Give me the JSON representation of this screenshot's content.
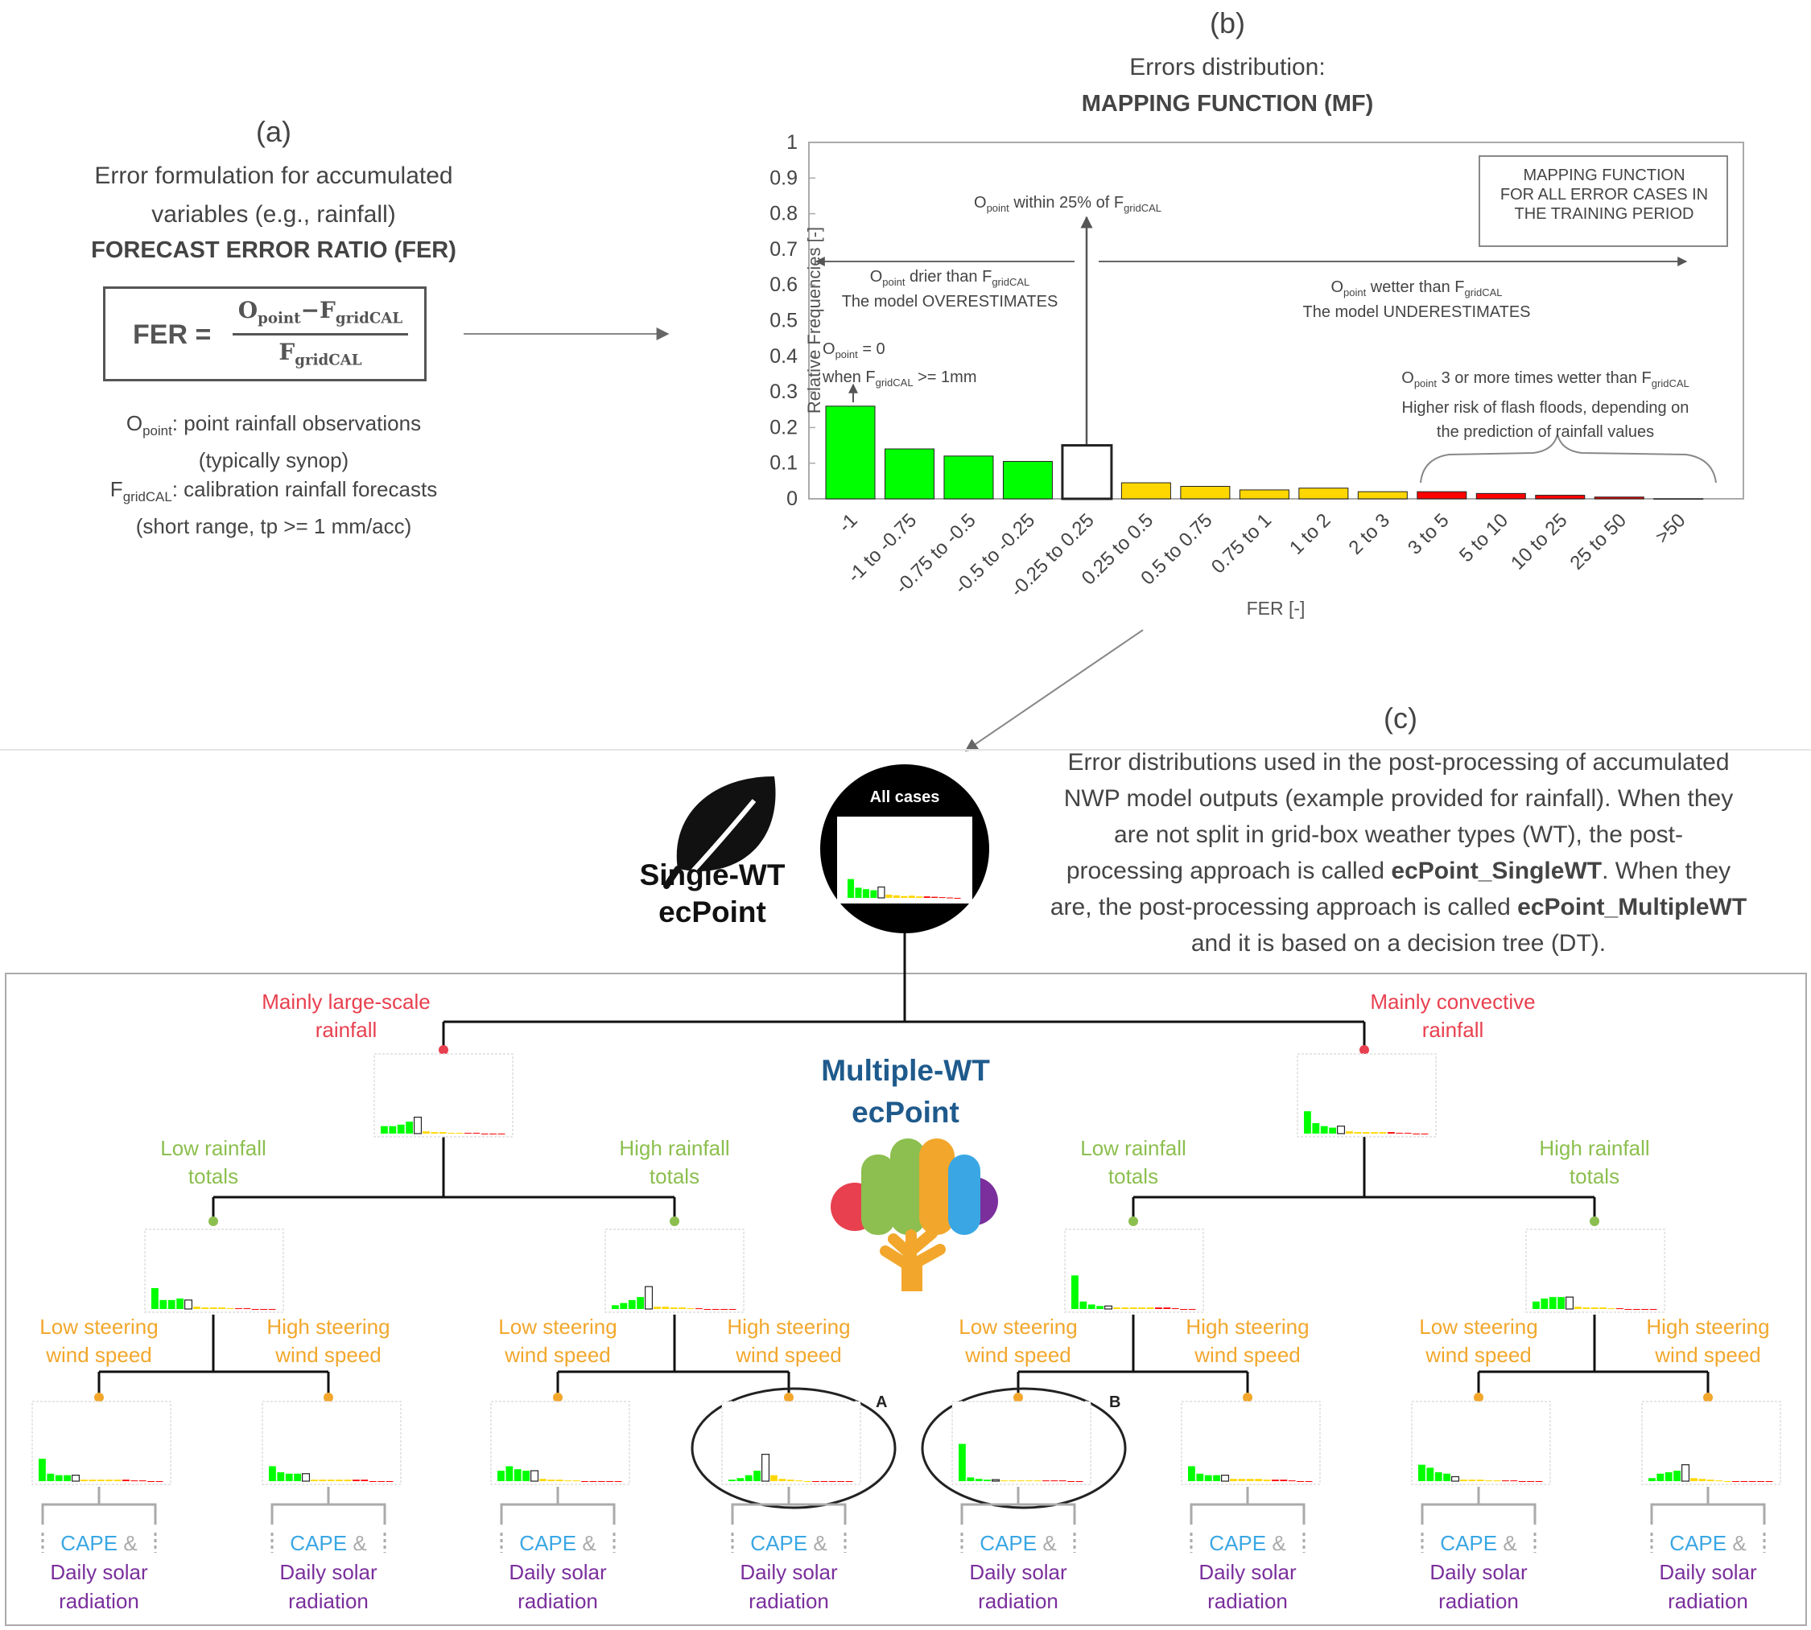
{
  "panel_a": {
    "label": "(a)",
    "line1": "Error formulation for accumulated",
    "line2": "variables (e.g., rainfall)",
    "title": "FORECAST ERROR RATIO (FER)",
    "formula_lhs": "FER =",
    "formula_num_a": "O",
    "formula_num_a_sub": "point",
    "formula_num_minus": "−F",
    "formula_num_b_sub": "gridCAL",
    "formula_den": "F",
    "formula_den_sub": "gridCAL",
    "o_sym": "O",
    "o_sub": "point",
    "o_desc": ": point rainfall observations",
    "o_desc2": "(typically synop)",
    "f_sym": "F",
    "f_sub": "gridCAL",
    "f_desc": ": calibration rainfall forecasts",
    "f_desc2": "(short range, tp >= 1 mm/acc)"
  },
  "panel_b": {
    "label": "(b)",
    "line1": "Errors distribution:",
    "title": "MAPPING FUNCTION (MF)",
    "legend_box": [
      "MAPPING FUNCTION",
      "FOR ALL ERROR CASES IN",
      "THE TRAINING PERIOD"
    ],
    "ann_within_a": "O",
    "ann_within_sub": "point",
    "ann_within_b": " within 25% of F",
    "ann_within_sub2": "gridCAL",
    "ann_drier_a": "O",
    "ann_drier_sub": "point",
    "ann_drier_b": " drier than F",
    "ann_drier_sub2": "gridCAL",
    "ann_drier_line2": "The model OVERESTIMATES",
    "ann_wetter_a": "O",
    "ann_wetter_sub": "point",
    "ann_wetter_b": " wetter than F",
    "ann_wetter_sub2": "gridCAL",
    "ann_wetter_line2": "The model UNDERESTIMATES",
    "ann_zero_a": "O",
    "ann_zero_sub": "point",
    "ann_zero_b": " = 0",
    "ann_zero_line2a": "when F",
    "ann_zero_line2sub": "gridCAL",
    "ann_zero_line2b": " >= 1mm",
    "ann_3x_a": "O",
    "ann_3x_sub": "point",
    "ann_3x_b": " 3 or more times wetter than F",
    "ann_3x_sub2": "gridCAL",
    "ann_3x_line2": "Higher risk of flash floods, depending on",
    "ann_3x_line3": "the prediction of rainfall values"
  },
  "chart_data": {
    "type": "bar",
    "categories": [
      "-1",
      "-1 to -0.75",
      "-0.75 to -0.5",
      "-0.5 to -0.25",
      "-0.25 to 0.25",
      "0.25 to 0.5",
      "0.5 to 0.75",
      "0.75 to 1",
      "1 to 2",
      "2 to 3",
      "3 to 5",
      "5 to 10",
      "10 to 25",
      "25 to 50",
      ">50"
    ],
    "values": [
      0.26,
      0.14,
      0.12,
      0.105,
      0.15,
      0.045,
      0.035,
      0.025,
      0.03,
      0.02,
      0.02,
      0.015,
      0.01,
      0.005,
      0.0
    ],
    "colors": [
      "#00ff00",
      "#00ff00",
      "#00ff00",
      "#00ff00",
      "#ffffff",
      "#ffd700",
      "#ffd700",
      "#ffd700",
      "#ffd700",
      "#ffd700",
      "#ff0000",
      "#ff0000",
      "#ff0000",
      "#ff0000",
      "#ff0000"
    ],
    "xlabel": "FER [-]",
    "ylabel": "Relative Frequencies [-]",
    "ylim": [
      0,
      1
    ],
    "yticks": [
      "0",
      "0.1",
      "0.2",
      "0.3",
      "0.4",
      "0.5",
      "0.6",
      "0.7",
      "0.8",
      "0.9",
      "1"
    ],
    "grid": false
  },
  "panel_c": {
    "label": "(c)",
    "desc_lines": [
      "Error distributions used in the post-processing of accumulated",
      "NWP model outputs (example provided for rainfall). When they",
      "are not split in grid-box weather types (WT), the post-"
    ],
    "desc_line4a": "processing approach is called ",
    "desc_line4b": "ecPoint_SingleWT",
    "desc_line4c": ". When they",
    "desc_line5a": "are, the post-processing approach is called ",
    "desc_line5b": "ecPoint_MultipleWT",
    "desc_line6": "and it is based on a decision tree (DT)."
  },
  "single_wt": {
    "line1": "Single-WT",
    "line2": "ecPoint",
    "circle_label": "All cases"
  },
  "multiple_wt": {
    "line1": "Multiple-WT",
    "line2": "ecPoint"
  },
  "tree": {
    "l1_left": [
      "Mainly large-scale",
      "rainfall"
    ],
    "l1_right": [
      "Mainly convective",
      "rainfall"
    ],
    "low_totals": [
      "Low rainfall",
      "totals"
    ],
    "high_totals": [
      "High rainfall",
      "totals"
    ],
    "low_steer": [
      "Low steering",
      "wind speed"
    ],
    "high_steer": [
      "High steering",
      "wind speed"
    ],
    "cape": "CAPE",
    "amp": "&",
    "solar1": "Daily solar",
    "solar2": "radiation",
    "mark_a": "A",
    "mark_b": "B"
  },
  "colors": {
    "accent_blue": "#1f5a8c",
    "red": "#e8404f",
    "green": "#8cbf4f",
    "orange": "#f2a72c",
    "cape_blue": "#3aa7e4",
    "purple": "#7a2f9c"
  }
}
